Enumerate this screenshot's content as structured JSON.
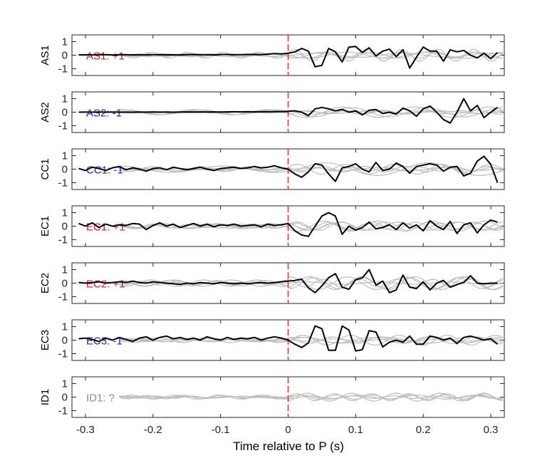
{
  "chart_data": {
    "type": "line",
    "xlabel": "Time relative to P (s)",
    "xlim": [
      -0.32,
      0.32
    ],
    "xticks": [
      -0.3,
      -0.2,
      -0.1,
      0,
      0.1,
      0.2,
      0.3
    ],
    "xtick_labels": [
      "-0.3",
      "-0.2",
      "-0.1",
      "0",
      "0.1",
      "0.2",
      "0.3"
    ],
    "ylim": [
      -1.5,
      1.5
    ],
    "yticks": [
      1,
      0,
      -1
    ],
    "ytick_labels": [
      "1",
      "0",
      "-1"
    ],
    "p_marker": {
      "x": 0,
      "color": "#e8352b"
    },
    "colors": {
      "positive": "#c0232a",
      "negative": "#1d2c9c",
      "unknown": "#8c8c8c",
      "trace": "#000000",
      "background": "#bdbdbd"
    },
    "panels": [
      {
        "ylabel": "AS1",
        "annotation": "AS1: +1",
        "label_color": "#c0232a",
        "series": {
          "x": [
            -0.31,
            -0.3,
            -0.29,
            -0.28,
            -0.27,
            -0.26,
            -0.25,
            -0.24,
            -0.23,
            -0.22,
            -0.21,
            -0.2,
            -0.19,
            -0.18,
            -0.17,
            -0.16,
            -0.15,
            -0.14,
            -0.13,
            -0.12,
            -0.11,
            -0.1,
            -0.09,
            -0.08,
            -0.07,
            -0.06,
            -0.05,
            -0.04,
            -0.03,
            -0.02,
            -0.01,
            0,
            0.01,
            0.02,
            0.03,
            0.04,
            0.05,
            0.06,
            0.07,
            0.08,
            0.09,
            0.1,
            0.11,
            0.12,
            0.13,
            0.14,
            0.15,
            0.16,
            0.17,
            0.18,
            0.19,
            0.2,
            0.21,
            0.22,
            0.23,
            0.24,
            0.25,
            0.26,
            0.27,
            0.28,
            0.29,
            0.3,
            0.31
          ],
          "y": [
            0.02,
            0.03,
            0.02,
            0.04,
            0.03,
            0.02,
            0.03,
            0.04,
            0.02,
            0.03,
            0.02,
            0.03,
            0.04,
            0.02,
            0.03,
            0.02,
            0.03,
            0.05,
            0.03,
            0.04,
            0.02,
            0.04,
            0.05,
            0.03,
            0.04,
            0.06,
            0.05,
            0.04,
            0.08,
            0.12,
            0.1,
            0.14,
            0.25,
            0.5,
            0.3,
            -0.85,
            -0.75,
            0.5,
            0.25,
            -0.5,
            0.6,
            0.65,
            0.2,
            0.55,
            -0.05,
            0.3,
            0.45,
            -0.1,
            0.4,
            -0.95,
            -0.15,
            0.6,
            0.3,
            0.3,
            -0.45,
            0.4,
            0.25,
            0.35,
            0.0,
            -0.2,
            0.15,
            -0.25,
            0.2
          ]
        }
      },
      {
        "ylabel": "AS2",
        "annotation": "AS2: -1",
        "label_color": "#1d2c9c",
        "series": {
          "x": [
            -0.31,
            -0.3,
            -0.29,
            -0.28,
            -0.27,
            -0.26,
            -0.25,
            -0.24,
            -0.23,
            -0.22,
            -0.21,
            -0.2,
            -0.19,
            -0.18,
            -0.17,
            -0.16,
            -0.15,
            -0.14,
            -0.13,
            -0.12,
            -0.11,
            -0.1,
            -0.09,
            -0.08,
            -0.07,
            -0.06,
            -0.05,
            -0.04,
            -0.03,
            -0.02,
            -0.01,
            0,
            0.01,
            0.02,
            0.03,
            0.04,
            0.05,
            0.06,
            0.07,
            0.08,
            0.09,
            0.1,
            0.11,
            0.12,
            0.13,
            0.14,
            0.15,
            0.16,
            0.17,
            0.18,
            0.19,
            0.2,
            0.21,
            0.22,
            0.23,
            0.24,
            0.25,
            0.26,
            0.27,
            0.28,
            0.29,
            0.3,
            0.31
          ],
          "y": [
            0.0,
            0.01,
            0.0,
            0.01,
            0.0,
            0.01,
            0.0,
            0.01,
            0.0,
            0.01,
            0.0,
            0.01,
            0.0,
            0.01,
            0.0,
            0.01,
            0.02,
            0.01,
            0.02,
            0.01,
            0.02,
            0.01,
            0.02,
            0.03,
            0.02,
            0.03,
            0.02,
            0.04,
            0.03,
            0.05,
            0.04,
            0.06,
            0.1,
            0.0,
            -0.25,
            0.25,
            0.35,
            0.25,
            0.1,
            0.2,
            0.0,
            0.1,
            -0.2,
            0.15,
            0.2,
            -0.1,
            0.0,
            -0.15,
            0.3,
            0.1,
            -0.3,
            0.25,
            0.45,
            0.0,
            -0.55,
            -0.8,
            0.0,
            1.0,
            0.1,
            0.5,
            -0.4,
            0.0,
            0.35
          ]
        }
      },
      {
        "ylabel": "CC1",
        "annotation": "CC1: -1",
        "label_color": "#1d2c9c",
        "series": {
          "x": [
            -0.31,
            -0.3,
            -0.29,
            -0.28,
            -0.27,
            -0.26,
            -0.25,
            -0.24,
            -0.23,
            -0.22,
            -0.21,
            -0.2,
            -0.19,
            -0.18,
            -0.17,
            -0.16,
            -0.15,
            -0.14,
            -0.13,
            -0.12,
            -0.11,
            -0.1,
            -0.09,
            -0.08,
            -0.07,
            -0.06,
            -0.05,
            -0.04,
            -0.03,
            -0.02,
            -0.01,
            0,
            0.01,
            0.02,
            0.03,
            0.04,
            0.05,
            0.06,
            0.07,
            0.08,
            0.09,
            0.1,
            0.11,
            0.12,
            0.13,
            0.14,
            0.15,
            0.16,
            0.17,
            0.18,
            0.19,
            0.2,
            0.21,
            0.22,
            0.23,
            0.24,
            0.25,
            0.26,
            0.27,
            0.28,
            0.29,
            0.3,
            0.31
          ],
          "y": [
            0.05,
            -0.1,
            0.15,
            0.05,
            -0.1,
            0.1,
            0.2,
            -0.05,
            0.1,
            0.0,
            -0.15,
            0.05,
            0.1,
            -0.05,
            0.15,
            0.05,
            -0.05,
            0.05,
            0.15,
            0.0,
            -0.1,
            0.05,
            0.1,
            0.15,
            0.05,
            0.1,
            0.2,
            0.1,
            0.15,
            0.25,
            0.1,
            0.0,
            -0.35,
            -0.6,
            -0.2,
            0.4,
            0.3,
            -0.35,
            -0.9,
            0.1,
            0.2,
            0.4,
            0.0,
            -0.2,
            0.5,
            -0.1,
            0.0,
            0.45,
            0.2,
            -0.3,
            0.2,
            0.3,
            0.4,
            0.3,
            -0.15,
            0.15,
            0.2,
            -0.5,
            -0.3,
            0.6,
            0.95,
            0.35,
            -1.0
          ]
        }
      },
      {
        "ylabel": "EC1",
        "annotation": "EC1: +1",
        "label_color": "#c0232a",
        "series": {
          "x": [
            -0.31,
            -0.3,
            -0.29,
            -0.28,
            -0.27,
            -0.26,
            -0.25,
            -0.24,
            -0.23,
            -0.22,
            -0.21,
            -0.2,
            -0.19,
            -0.18,
            -0.17,
            -0.16,
            -0.15,
            -0.14,
            -0.13,
            -0.12,
            -0.11,
            -0.1,
            -0.09,
            -0.08,
            -0.07,
            -0.06,
            -0.05,
            -0.04,
            -0.03,
            -0.02,
            -0.01,
            0,
            0.01,
            0.02,
            0.03,
            0.04,
            0.05,
            0.06,
            0.07,
            0.08,
            0.09,
            0.1,
            0.11,
            0.12,
            0.13,
            0.14,
            0.15,
            0.16,
            0.17,
            0.18,
            0.19,
            0.2,
            0.21,
            0.22,
            0.23,
            0.24,
            0.25,
            0.26,
            0.27,
            0.28,
            0.29,
            0.3,
            0.31
          ],
          "y": [
            0.2,
            0.0,
            0.25,
            -0.1,
            0.15,
            0.0,
            0.1,
            0.05,
            0.2,
            0.15,
            -0.25,
            0.05,
            0.25,
            0.0,
            0.15,
            -0.1,
            0.05,
            0.2,
            0.0,
            0.15,
            -0.05,
            0.1,
            0.05,
            0.15,
            0.0,
            0.05,
            0.1,
            -0.05,
            0.15,
            0.05,
            0.1,
            0.2,
            -0.35,
            -0.65,
            -0.75,
            0.0,
            0.75,
            1.0,
            0.75,
            -0.6,
            0.0,
            -0.3,
            -0.1,
            0.3,
            -0.2,
            -0.1,
            0.1,
            -0.25,
            0.25,
            -0.15,
            0.1,
            -0.35,
            0.4,
            0.0,
            -0.25,
            0.35,
            -0.55,
            0.1,
            0.25,
            -0.5,
            0.1,
            0.45,
            0.3
          ]
        }
      },
      {
        "ylabel": "EC2",
        "annotation": "EC2: +1",
        "label_color": "#c0232a",
        "series": {
          "x": [
            -0.31,
            -0.3,
            -0.29,
            -0.28,
            -0.27,
            -0.26,
            -0.25,
            -0.24,
            -0.23,
            -0.22,
            -0.21,
            -0.2,
            -0.19,
            -0.18,
            -0.17,
            -0.16,
            -0.15,
            -0.14,
            -0.13,
            -0.12,
            -0.11,
            -0.1,
            -0.09,
            -0.08,
            -0.07,
            -0.06,
            -0.05,
            -0.04,
            -0.03,
            -0.02,
            -0.01,
            0,
            0.01,
            0.02,
            0.03,
            0.04,
            0.05,
            0.06,
            0.07,
            0.08,
            0.09,
            0.1,
            0.11,
            0.12,
            0.13,
            0.14,
            0.15,
            0.16,
            0.17,
            0.18,
            0.19,
            0.2,
            0.21,
            0.22,
            0.23,
            0.24,
            0.25,
            0.26,
            0.27,
            0.28,
            0.29,
            0.3,
            0.31
          ],
          "y": [
            0.05,
            0.0,
            0.05,
            0.1,
            0.0,
            0.05,
            0.1,
            0.05,
            0.15,
            0.05,
            0.0,
            0.1,
            0.05,
            0.0,
            -0.05,
            -0.1,
            0.0,
            -0.05,
            0.05,
            0.0,
            -0.05,
            0.05,
            0.0,
            -0.05,
            0.0,
            -0.05,
            0.0,
            0.05,
            0.0,
            0.05,
            0.1,
            0.15,
            0.2,
            0.3,
            -0.35,
            -0.7,
            -0.2,
            0.4,
            0.7,
            -0.3,
            -0.45,
            0.25,
            0.4,
            1.0,
            -0.15,
            0.15,
            -0.7,
            -0.5,
            0.6,
            -0.3,
            -0.4,
            0.1,
            -0.5,
            0.0,
            0.2,
            -0.3,
            -0.1,
            0.05,
            0.55,
            0.0,
            -0.05,
            0.0,
            0.0
          ]
        }
      },
      {
        "ylabel": "EC3",
        "annotation": "EC3: -1",
        "label_color": "#1d2c9c",
        "series": {
          "x": [
            -0.31,
            -0.3,
            -0.29,
            -0.28,
            -0.27,
            -0.26,
            -0.25,
            -0.24,
            -0.23,
            -0.22,
            -0.21,
            -0.2,
            -0.19,
            -0.18,
            -0.17,
            -0.16,
            -0.15,
            -0.14,
            -0.13,
            -0.12,
            -0.11,
            -0.1,
            -0.09,
            -0.08,
            -0.07,
            -0.06,
            -0.05,
            -0.04,
            -0.03,
            -0.02,
            -0.01,
            0,
            0.01,
            0.02,
            0.03,
            0.04,
            0.05,
            0.06,
            0.07,
            0.08,
            0.09,
            0.1,
            0.11,
            0.12,
            0.13,
            0.14,
            0.15,
            0.16,
            0.17,
            0.18,
            0.19,
            0.2,
            0.21,
            0.22,
            0.23,
            0.24,
            0.25,
            0.26,
            0.27,
            0.28,
            0.29,
            0.3,
            0.31
          ],
          "y": [
            0.1,
            0.15,
            0.05,
            -0.1,
            0.15,
            0.0,
            0.2,
            0.05,
            -0.1,
            0.15,
            0.25,
            0.0,
            0.2,
            0.3,
            0.1,
            0.2,
            0.05,
            0.15,
            0.0,
            0.25,
            0.1,
            0.0,
            0.2,
            0.05,
            0.15,
            0.1,
            0.2,
            0.0,
            0.15,
            0.25,
            0.15,
            0.0,
            -0.3,
            -0.55,
            -0.2,
            1.05,
            0.85,
            -0.75,
            -0.75,
            1.05,
            0.75,
            -0.8,
            -0.7,
            0.7,
            0.6,
            -0.5,
            -0.15,
            0.0,
            -0.15,
            0.3,
            -0.3,
            -0.3,
            0.3,
            0.2,
            0.0,
            0.15,
            -0.25,
            0.2,
            0.3,
            0.15,
            0.0,
            0.1,
            -0.3
          ]
        }
      },
      {
        "ylabel": "ID1",
        "annotation": "ID1: ?",
        "label_color": "#8c8c8c",
        "series": null
      }
    ]
  }
}
